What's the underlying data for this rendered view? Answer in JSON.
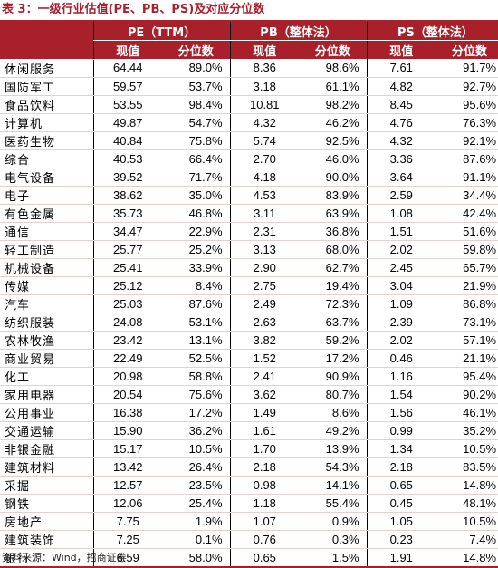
{
  "title": "表 3：一级行业估值(PE、PB、PS)及对应分位数",
  "headers": {
    "group_pe": "PE（TTM）",
    "group_pb": "PB（整体法）",
    "group_ps": "PS（整体法）",
    "current": "现值",
    "percentile": "分位数"
  },
  "rows": [
    {
      "name": "休闲服务",
      "pe": "64.44",
      "pe_pct": "89.0%",
      "pb": "8.36",
      "pb_pct": "98.6%",
      "ps": "7.61",
      "ps_pct": "91.7%"
    },
    {
      "name": "国防军工",
      "pe": "59.57",
      "pe_pct": "53.7%",
      "pb": "3.18",
      "pb_pct": "61.1%",
      "ps": "4.82",
      "ps_pct": "92.7%"
    },
    {
      "name": "食品饮料",
      "pe": "53.55",
      "pe_pct": "98.4%",
      "pb": "10.81",
      "pb_pct": "98.2%",
      "ps": "8.45",
      "ps_pct": "95.6%"
    },
    {
      "name": "计算机",
      "pe": "49.87",
      "pe_pct": "54.7%",
      "pb": "4.32",
      "pb_pct": "46.2%",
      "ps": "4.76",
      "ps_pct": "76.3%"
    },
    {
      "name": "医药生物",
      "pe": "40.84",
      "pe_pct": "75.8%",
      "pb": "5.74",
      "pb_pct": "92.5%",
      "ps": "4.32",
      "ps_pct": "92.1%"
    },
    {
      "name": "综合",
      "pe": "40.53",
      "pe_pct": "66.4%",
      "pb": "2.70",
      "pb_pct": "46.0%",
      "ps": "3.36",
      "ps_pct": "87.6%"
    },
    {
      "name": "电气设备",
      "pe": "39.52",
      "pe_pct": "71.7%",
      "pb": "4.18",
      "pb_pct": "90.0%",
      "ps": "3.64",
      "ps_pct": "91.1%"
    },
    {
      "name": "电子",
      "pe": "38.62",
      "pe_pct": "35.0%",
      "pb": "4.53",
      "pb_pct": "83.9%",
      "ps": "2.59",
      "ps_pct": "34.4%"
    },
    {
      "name": "有色金属",
      "pe": "35.73",
      "pe_pct": "46.8%",
      "pb": "3.11",
      "pb_pct": "63.9%",
      "ps": "1.08",
      "ps_pct": "42.4%"
    },
    {
      "name": "通信",
      "pe": "34.47",
      "pe_pct": "22.9%",
      "pb": "2.31",
      "pb_pct": "36.8%",
      "ps": "1.51",
      "ps_pct": "51.6%"
    },
    {
      "name": "轻工制造",
      "pe": "25.77",
      "pe_pct": "25.2%",
      "pb": "3.13",
      "pb_pct": "68.0%",
      "ps": "2.02",
      "ps_pct": "59.8%"
    },
    {
      "name": "机械设备",
      "pe": "25.41",
      "pe_pct": "33.9%",
      "pb": "2.90",
      "pb_pct": "62.7%",
      "ps": "2.45",
      "ps_pct": "65.7%"
    },
    {
      "name": "传媒",
      "pe": "25.12",
      "pe_pct": "8.4%",
      "pb": "2.75",
      "pb_pct": "19.4%",
      "ps": "3.04",
      "ps_pct": "21.9%"
    },
    {
      "name": "汽车",
      "pe": "25.03",
      "pe_pct": "87.6%",
      "pb": "2.49",
      "pb_pct": "72.3%",
      "ps": "1.09",
      "ps_pct": "86.8%"
    },
    {
      "name": "纺织服装",
      "pe": "24.08",
      "pe_pct": "53.1%",
      "pb": "2.63",
      "pb_pct": "63.7%",
      "ps": "2.39",
      "ps_pct": "73.1%"
    },
    {
      "name": "农林牧渔",
      "pe": "23.42",
      "pe_pct": "13.1%",
      "pb": "3.82",
      "pb_pct": "59.2%",
      "ps": "2.02",
      "ps_pct": "57.1%"
    },
    {
      "name": "商业贸易",
      "pe": "22.49",
      "pe_pct": "52.5%",
      "pb": "1.52",
      "pb_pct": "17.2%",
      "ps": "0.46",
      "ps_pct": "21.1%"
    },
    {
      "name": "化工",
      "pe": "20.98",
      "pe_pct": "58.8%",
      "pb": "2.41",
      "pb_pct": "90.9%",
      "ps": "1.16",
      "ps_pct": "95.4%"
    },
    {
      "name": "家用电器",
      "pe": "20.54",
      "pe_pct": "75.6%",
      "pb": "3.62",
      "pb_pct": "80.7%",
      "ps": "1.54",
      "ps_pct": "90.2%"
    },
    {
      "name": "公用事业",
      "pe": "16.38",
      "pe_pct": "17.2%",
      "pb": "1.49",
      "pb_pct": "8.6%",
      "ps": "1.56",
      "ps_pct": "46.1%"
    },
    {
      "name": "交通运输",
      "pe": "15.90",
      "pe_pct": "36.2%",
      "pb": "1.61",
      "pb_pct": "49.2%",
      "ps": "0.99",
      "ps_pct": "35.2%"
    },
    {
      "name": "非银金融",
      "pe": "15.17",
      "pe_pct": "10.5%",
      "pb": "1.70",
      "pb_pct": "13.9%",
      "ps": "1.34",
      "ps_pct": "10.5%"
    },
    {
      "name": "建筑材料",
      "pe": "13.42",
      "pe_pct": "26.4%",
      "pb": "2.18",
      "pb_pct": "54.3%",
      "ps": "2.18",
      "ps_pct": "83.5%"
    },
    {
      "name": "采掘",
      "pe": "12.57",
      "pe_pct": "23.5%",
      "pb": "0.98",
      "pb_pct": "14.1%",
      "ps": "0.65",
      "ps_pct": "14.8%"
    },
    {
      "name": "钢铁",
      "pe": "12.06",
      "pe_pct": "25.4%",
      "pb": "1.18",
      "pb_pct": "55.4%",
      "ps": "0.45",
      "ps_pct": "48.1%"
    },
    {
      "name": "房地产",
      "pe": "7.75",
      "pe_pct": "1.9%",
      "pb": "1.07",
      "pb_pct": "0.9%",
      "ps": "1.05",
      "ps_pct": "10.5%"
    },
    {
      "name": "建筑装饰",
      "pe": "7.25",
      "pe_pct": "0.1%",
      "pb": "0.76",
      "pb_pct": "0.3%",
      "ps": "0.23",
      "ps_pct": "7.4%"
    },
    {
      "name": "银行",
      "pe": "6.59",
      "pe_pct": "58.0%",
      "pb": "0.65",
      "pb_pct": "1.5%",
      "ps": "1.91",
      "ps_pct": "14.8%"
    }
  ],
  "source": "资料来源：Wind，招商证券",
  "colors": {
    "header_bg": "#a8202a",
    "header_text": "#ffffff",
    "title_text": "#a8202a"
  }
}
